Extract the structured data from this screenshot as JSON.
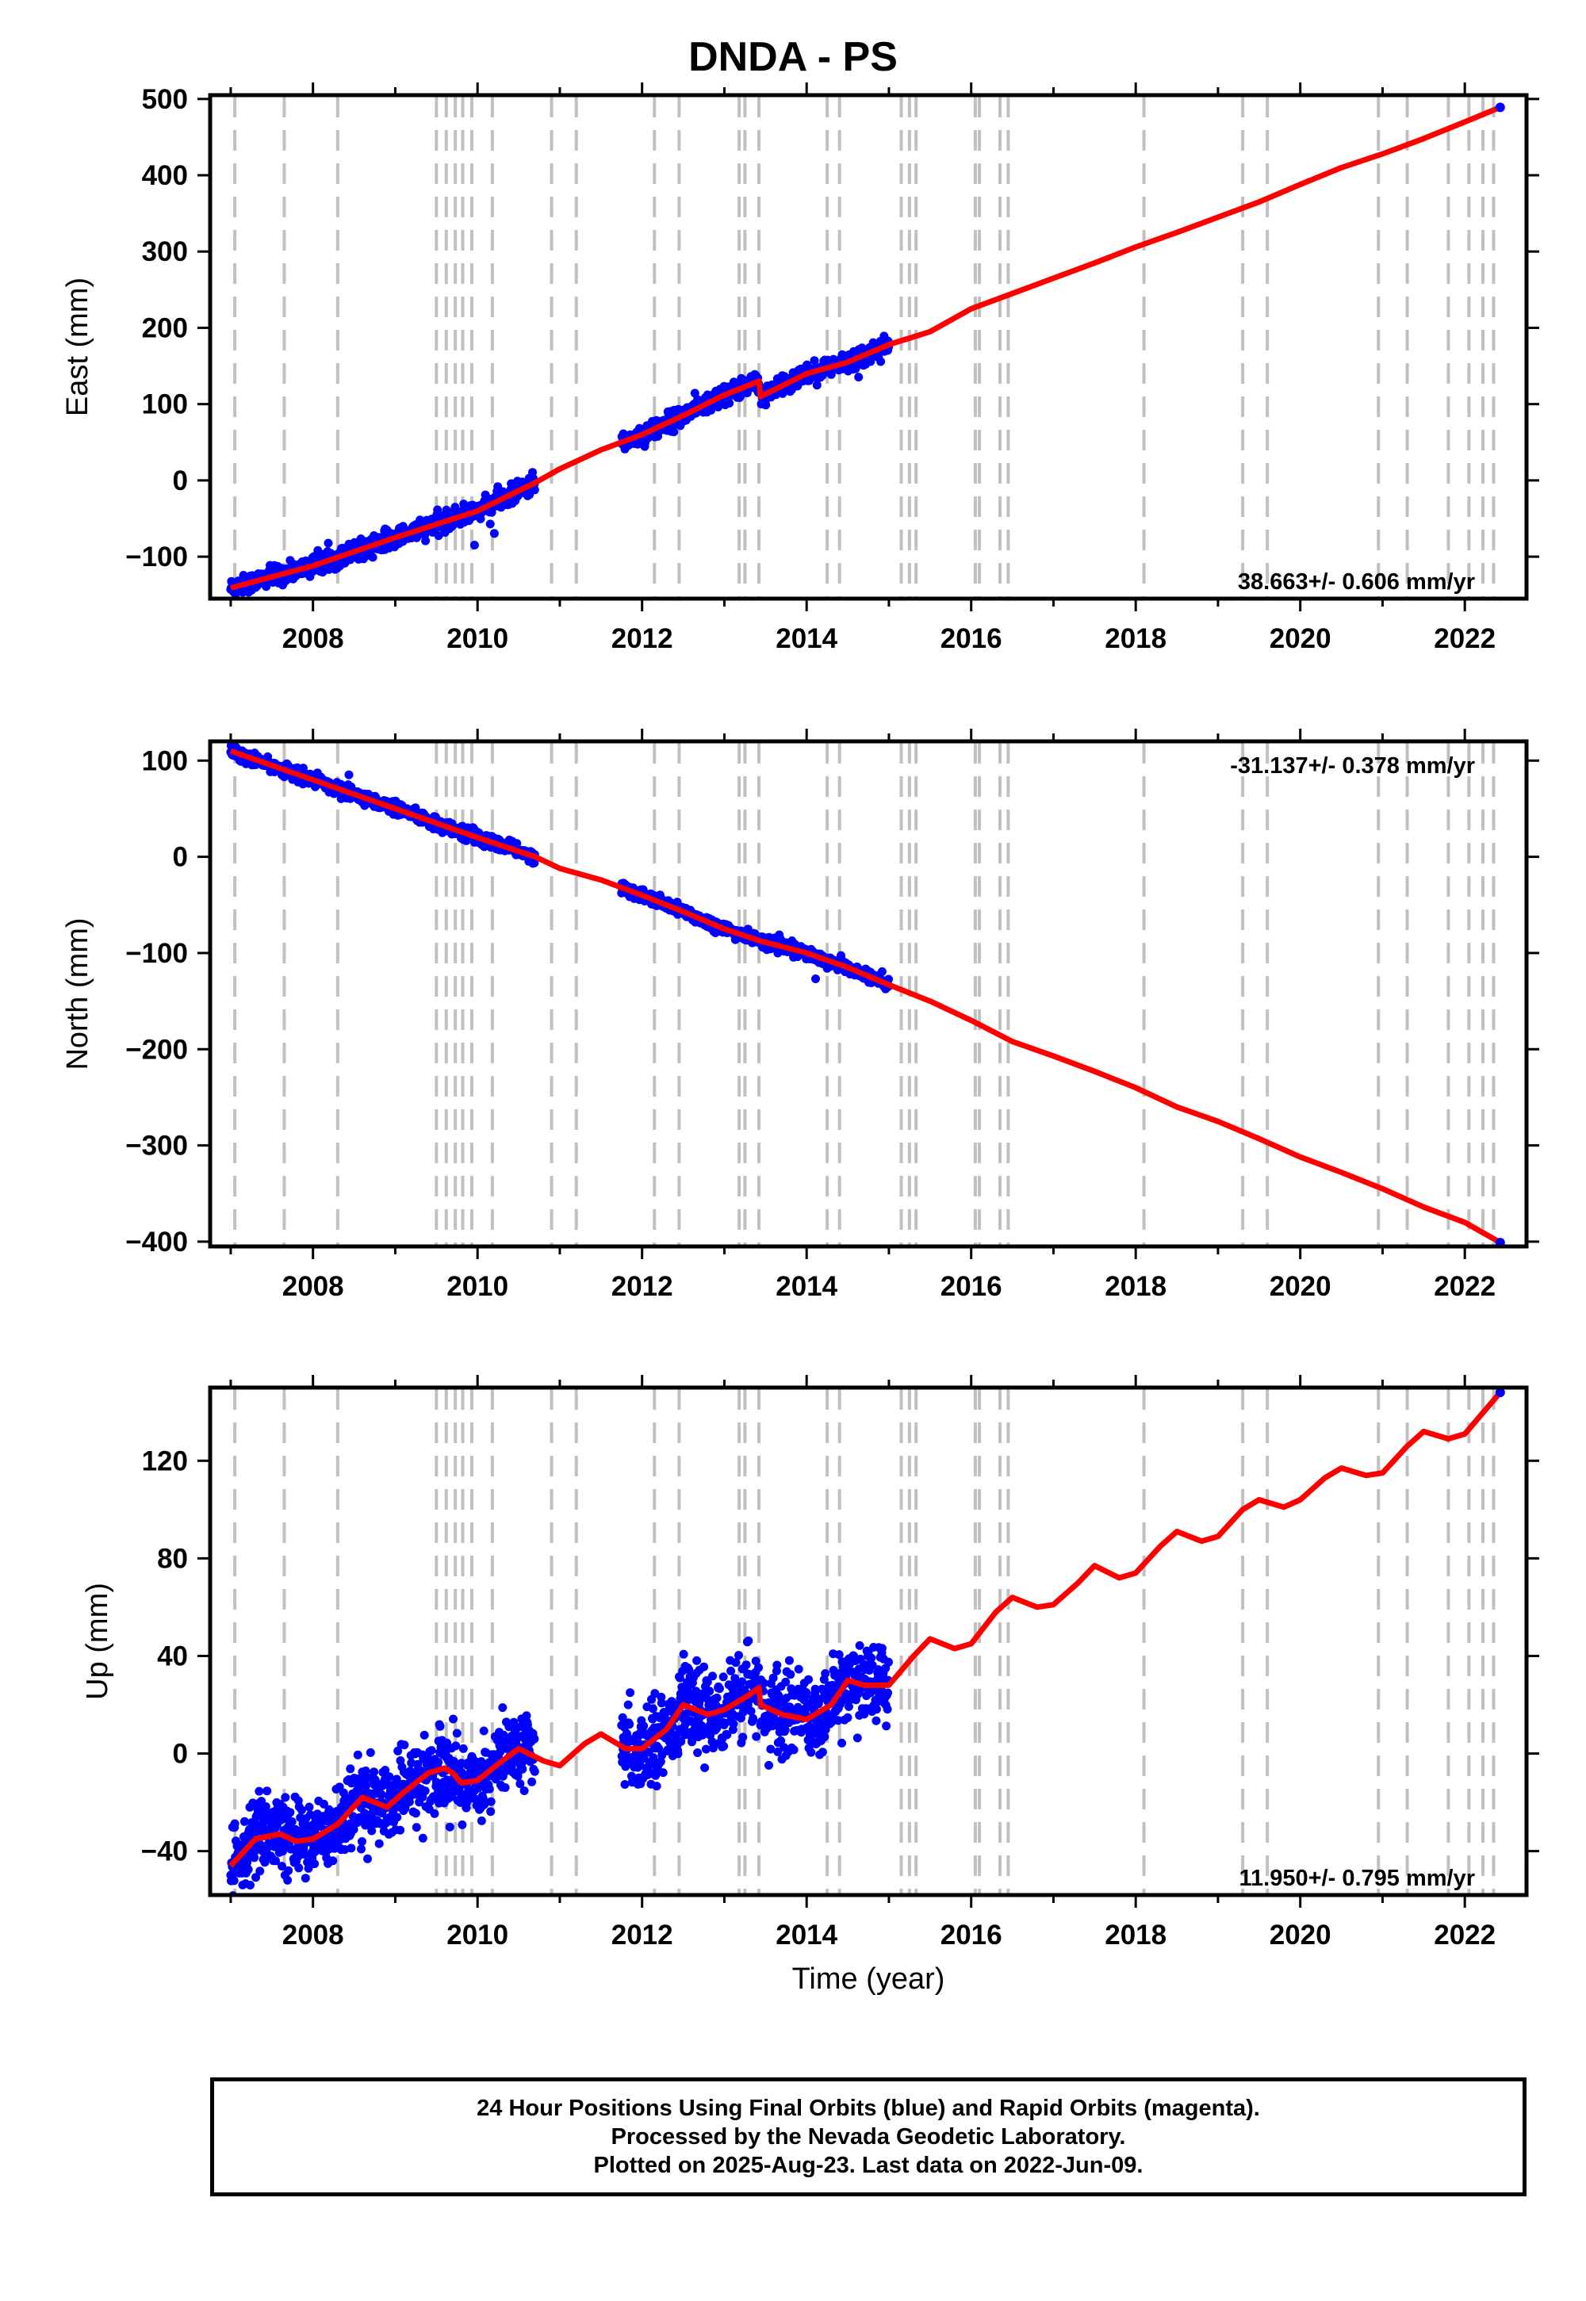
{
  "title": "DNDA - PS",
  "footer": {
    "line1": "24 Hour Positions Using Final Orbits (blue) and Rapid Orbits (magenta).",
    "line2": "Processed by the Nevada Geodetic Laboratory.",
    "line3": "Plotted on 2025-Aug-23. Last data on 2022-Jun-09."
  },
  "colors": {
    "final_orbits": "#0000ff",
    "rapid_orbits": "#ff00ff",
    "model": "#ff0000",
    "event_lines": "#c0c0c0"
  },
  "event_lines_years": [
    2007.05,
    2007.65,
    2008.3,
    2009.5,
    2009.62,
    2009.73,
    2009.82,
    2009.93,
    2010.18,
    2010.9,
    2011.2,
    2012.15,
    2012.45,
    2013.18,
    2013.25,
    2013.42,
    2014.25,
    2014.4,
    2015.15,
    2015.25,
    2015.33,
    2016.05,
    2016.1,
    2016.35,
    2016.45,
    2018.1,
    2019.3,
    2019.6,
    2020.95,
    2021.3,
    2021.8,
    2022.05,
    2022.22,
    2022.35
  ],
  "chart_data": [
    {
      "type": "scatter",
      "ylabel": "East (mm)",
      "xlabel": "",
      "xlim": [
        2006.75,
        2022.75
      ],
      "ylim": [
        -155,
        505
      ],
      "xticks": [
        2008,
        2010,
        2012,
        2014,
        2016,
        2018,
        2020,
        2022
      ],
      "yticks": [
        -100,
        0,
        100,
        200,
        300,
        400,
        500
      ],
      "rate_label": "38.663+/- 0.606 mm/yr",
      "rate_position": "bottom-right",
      "model_line": [
        [
          2007.0,
          -141
        ],
        [
          2008.0,
          -112
        ],
        [
          2009.0,
          -75
        ],
        [
          2010.0,
          -40
        ],
        [
          2010.7,
          -3
        ],
        [
          2011.0,
          15
        ],
        [
          2011.5,
          40
        ],
        [
          2012.0,
          60
        ],
        [
          2012.5,
          85
        ],
        [
          2013.0,
          112
        ],
        [
          2013.42,
          130
        ],
        [
          2013.44,
          110
        ],
        [
          2014.0,
          140
        ],
        [
          2014.5,
          155
        ],
        [
          2015.0,
          178
        ],
        [
          2015.5,
          195
        ],
        [
          2016.0,
          225
        ],
        [
          2016.5,
          245
        ],
        [
          2017.0,
          265
        ],
        [
          2017.5,
          285
        ],
        [
          2018.0,
          306
        ],
        [
          2018.5,
          325
        ],
        [
          2019.0,
          345
        ],
        [
          2019.5,
          365
        ],
        [
          2020.0,
          388
        ],
        [
          2020.5,
          410
        ],
        [
          2021.0,
          428
        ],
        [
          2021.5,
          448
        ],
        [
          2022.0,
          470
        ],
        [
          2022.43,
          489
        ]
      ],
      "data_segments": [
        {
          "start": 2007.0,
          "end": 2010.7,
          "model_start": -141,
          "model_end": -3,
          "noise": 6
        },
        {
          "start": 2011.75,
          "end": 2013.42,
          "model_start": 62,
          "model_end": 132,
          "noise": 6
        },
        {
          "start": 2013.44,
          "end": 2015.0,
          "model_start": 118,
          "model_end": 175,
          "noise": 6
        }
      ],
      "last_point": [
        2022.43,
        489
      ]
    },
    {
      "type": "scatter",
      "ylabel": "North (mm)",
      "xlabel": "",
      "xlim": [
        2006.75,
        2022.75
      ],
      "ylim": [
        -405,
        120
      ],
      "xticks": [
        2008,
        2010,
        2012,
        2014,
        2016,
        2018,
        2020,
        2022
      ],
      "yticks": [
        -400,
        -300,
        -200,
        -100,
        0,
        100
      ],
      "rate_label": "-31.137+/- 0.378 mm/yr",
      "rate_position": "top-right",
      "model_line": [
        [
          2007.0,
          110
        ],
        [
          2008.0,
          80
        ],
        [
          2009.0,
          50
        ],
        [
          2010.0,
          20
        ],
        [
          2010.7,
          0
        ],
        [
          2011.0,
          -12
        ],
        [
          2011.5,
          -24
        ],
        [
          2012.0,
          -40
        ],
        [
          2012.5,
          -57
        ],
        [
          2013.0,
          -75
        ],
        [
          2013.42,
          -87
        ],
        [
          2014.0,
          -100
        ],
        [
          2014.5,
          -115
        ],
        [
          2015.0,
          -133
        ],
        [
          2015.5,
          -150
        ],
        [
          2016.0,
          -170
        ],
        [
          2016.5,
          -192
        ],
        [
          2017.0,
          -207
        ],
        [
          2017.5,
          -223
        ],
        [
          2018.0,
          -240
        ],
        [
          2018.5,
          -260
        ],
        [
          2019.0,
          -275
        ],
        [
          2019.5,
          -293
        ],
        [
          2020.0,
          -312
        ],
        [
          2020.5,
          -328
        ],
        [
          2021.0,
          -345
        ],
        [
          2021.5,
          -364
        ],
        [
          2022.0,
          -380
        ],
        [
          2022.43,
          -401
        ]
      ],
      "data_segments": [
        {
          "start": 2007.0,
          "end": 2010.7,
          "model_start": 110,
          "model_end": 0,
          "noise": 3
        },
        {
          "start": 2011.75,
          "end": 2013.42,
          "model_start": -30,
          "model_end": -87,
          "noise": 3
        },
        {
          "start": 2013.44,
          "end": 2015.0,
          "model_start": -80,
          "model_end": -133,
          "noise": 3
        }
      ],
      "last_point": [
        2022.43,
        -401
      ]
    },
    {
      "type": "scatter",
      "ylabel": "Up (mm)",
      "xlabel": "Time (year)",
      "xlim": [
        2006.75,
        2022.75
      ],
      "ylim": [
        -58,
        150
      ],
      "xticks": [
        2008,
        2010,
        2012,
        2014,
        2016,
        2018,
        2020,
        2022
      ],
      "yticks": [
        -40,
        0,
        40,
        80,
        120
      ],
      "rate_label": "11.950+/- 0.795 mm/yr",
      "rate_position": "bottom-right",
      "model_line": [
        [
          2007.0,
          -46
        ],
        [
          2007.3,
          -35
        ],
        [
          2007.6,
          -33
        ],
        [
          2007.8,
          -36
        ],
        [
          2008.0,
          -35
        ],
        [
          2008.3,
          -29
        ],
        [
          2008.6,
          -18
        ],
        [
          2008.9,
          -22
        ],
        [
          2009.1,
          -16
        ],
        [
          2009.4,
          -8
        ],
        [
          2009.6,
          -6
        ],
        [
          2009.7,
          -8
        ],
        [
          2009.8,
          -12
        ],
        [
          2010.0,
          -11
        ],
        [
          2010.3,
          -3
        ],
        [
          2010.5,
          2
        ],
        [
          2010.8,
          -3
        ],
        [
          2011.0,
          -5
        ],
        [
          2011.3,
          4
        ],
        [
          2011.5,
          8
        ],
        [
          2011.8,
          2
        ],
        [
          2012.0,
          2
        ],
        [
          2012.3,
          10
        ],
        [
          2012.5,
          20
        ],
        [
          2012.8,
          16
        ],
        [
          2013.0,
          18
        ],
        [
          2013.3,
          24
        ],
        [
          2013.42,
          27
        ],
        [
          2013.44,
          20
        ],
        [
          2013.7,
          16
        ],
        [
          2014.0,
          14
        ],
        [
          2014.3,
          20
        ],
        [
          2014.5,
          30
        ],
        [
          2014.7,
          28
        ],
        [
          2015.0,
          28
        ],
        [
          2015.3,
          40
        ],
        [
          2015.5,
          47
        ],
        [
          2015.8,
          43
        ],
        [
          2016.0,
          45
        ],
        [
          2016.3,
          58
        ],
        [
          2016.5,
          64
        ],
        [
          2016.8,
          60
        ],
        [
          2017.0,
          61
        ],
        [
          2017.3,
          70
        ],
        [
          2017.5,
          77
        ],
        [
          2017.8,
          72
        ],
        [
          2018.0,
          74
        ],
        [
          2018.3,
          85
        ],
        [
          2018.5,
          91
        ],
        [
          2018.8,
          87
        ],
        [
          2019.0,
          89
        ],
        [
          2019.3,
          100
        ],
        [
          2019.5,
          104
        ],
        [
          2019.8,
          101
        ],
        [
          2020.0,
          104
        ],
        [
          2020.3,
          113
        ],
        [
          2020.5,
          117
        ],
        [
          2020.8,
          114
        ],
        [
          2021.0,
          115
        ],
        [
          2021.3,
          126
        ],
        [
          2021.5,
          132
        ],
        [
          2021.8,
          129
        ],
        [
          2022.0,
          131
        ],
        [
          2022.43,
          148
        ]
      ],
      "data_segments": [
        {
          "start": 2007.0,
          "end": 2010.7,
          "model_start": -46,
          "model_end": -3,
          "noise": 8
        },
        {
          "start": 2011.75,
          "end": 2013.42,
          "model_start": 2,
          "model_end": 27,
          "noise": 8
        },
        {
          "start": 2013.44,
          "end": 2015.0,
          "model_start": 20,
          "model_end": 28,
          "noise": 8
        }
      ],
      "last_point": [
        2022.43,
        148
      ]
    }
  ]
}
